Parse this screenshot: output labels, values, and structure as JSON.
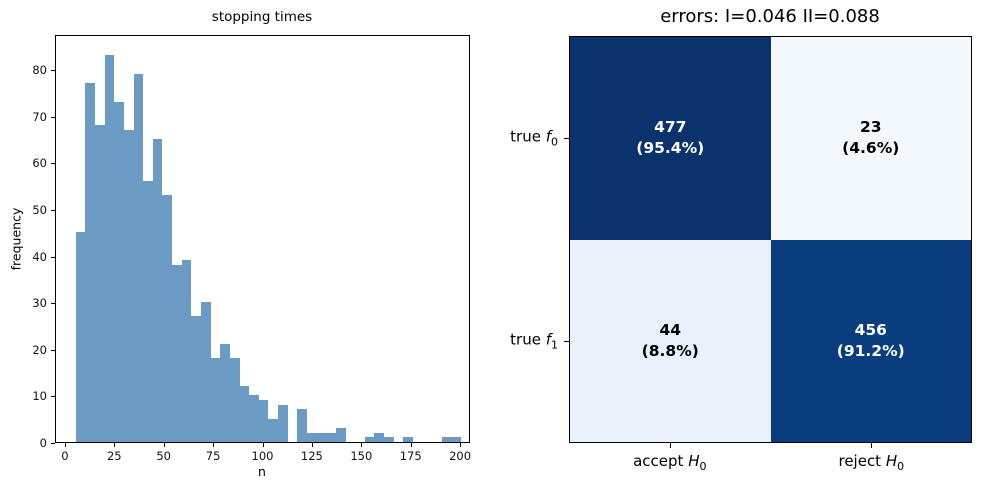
{
  "figure": {
    "background": "#ffffff"
  },
  "chart_data": [
    {
      "type": "bar",
      "subtype": "histogram",
      "title": "stopping times",
      "xlabel": "n",
      "ylabel": "frequency",
      "bar_color": "#6b9bc3",
      "grid": false,
      "legend": "none",
      "xlim": [
        -5,
        205
      ],
      "ylim": [
        0,
        87.5
      ],
      "x_ticks": [
        0,
        25,
        50,
        75,
        100,
        125,
        150,
        175,
        200
      ],
      "y_ticks": [
        0,
        10,
        20,
        30,
        40,
        50,
        60,
        70,
        80
      ],
      "bin_start": 5,
      "bin_width": 4.875,
      "bin_counts": [
        45,
        77,
        68,
        83,
        73,
        67,
        79,
        56,
        65,
        53,
        38,
        39,
        27,
        30,
        18,
        21,
        18,
        12,
        10,
        9,
        5,
        8,
        0,
        7,
        2,
        2,
        2,
        3,
        0,
        0,
        1,
        2,
        1,
        0,
        1,
        0,
        0,
        0,
        1,
        1
      ]
    },
    {
      "type": "heatmap",
      "subtype": "confusion-matrix",
      "title": "errors: I=0.046 II=0.088",
      "type_I_error": 0.046,
      "type_II_error": 0.088,
      "row_labels": [
        {
          "text": "true",
          "var": "f",
          "sub": "0"
        },
        {
          "text": "true",
          "var": "f",
          "sub": "1"
        }
      ],
      "col_labels": [
        {
          "text": "accept",
          "var": "H",
          "sub": "0"
        },
        {
          "text": "reject",
          "var": "H",
          "sub": "0"
        }
      ],
      "cells": [
        [
          {
            "count": "477",
            "percent": "(95.4%)",
            "bg": "#0a336e",
            "fg": "#ffffff"
          },
          {
            "count": "23",
            "percent": "(4.6%)",
            "bg": "#f3f8fd",
            "fg": "#000000"
          }
        ],
        [
          {
            "count": "44",
            "percent": "(8.8%)",
            "bg": "#e8f1fa",
            "fg": "#000000"
          },
          {
            "count": "456",
            "percent": "(91.2%)",
            "bg": "#0a3d7d",
            "fg": "#ffffff"
          }
        ]
      ],
      "legend": "none"
    }
  ]
}
